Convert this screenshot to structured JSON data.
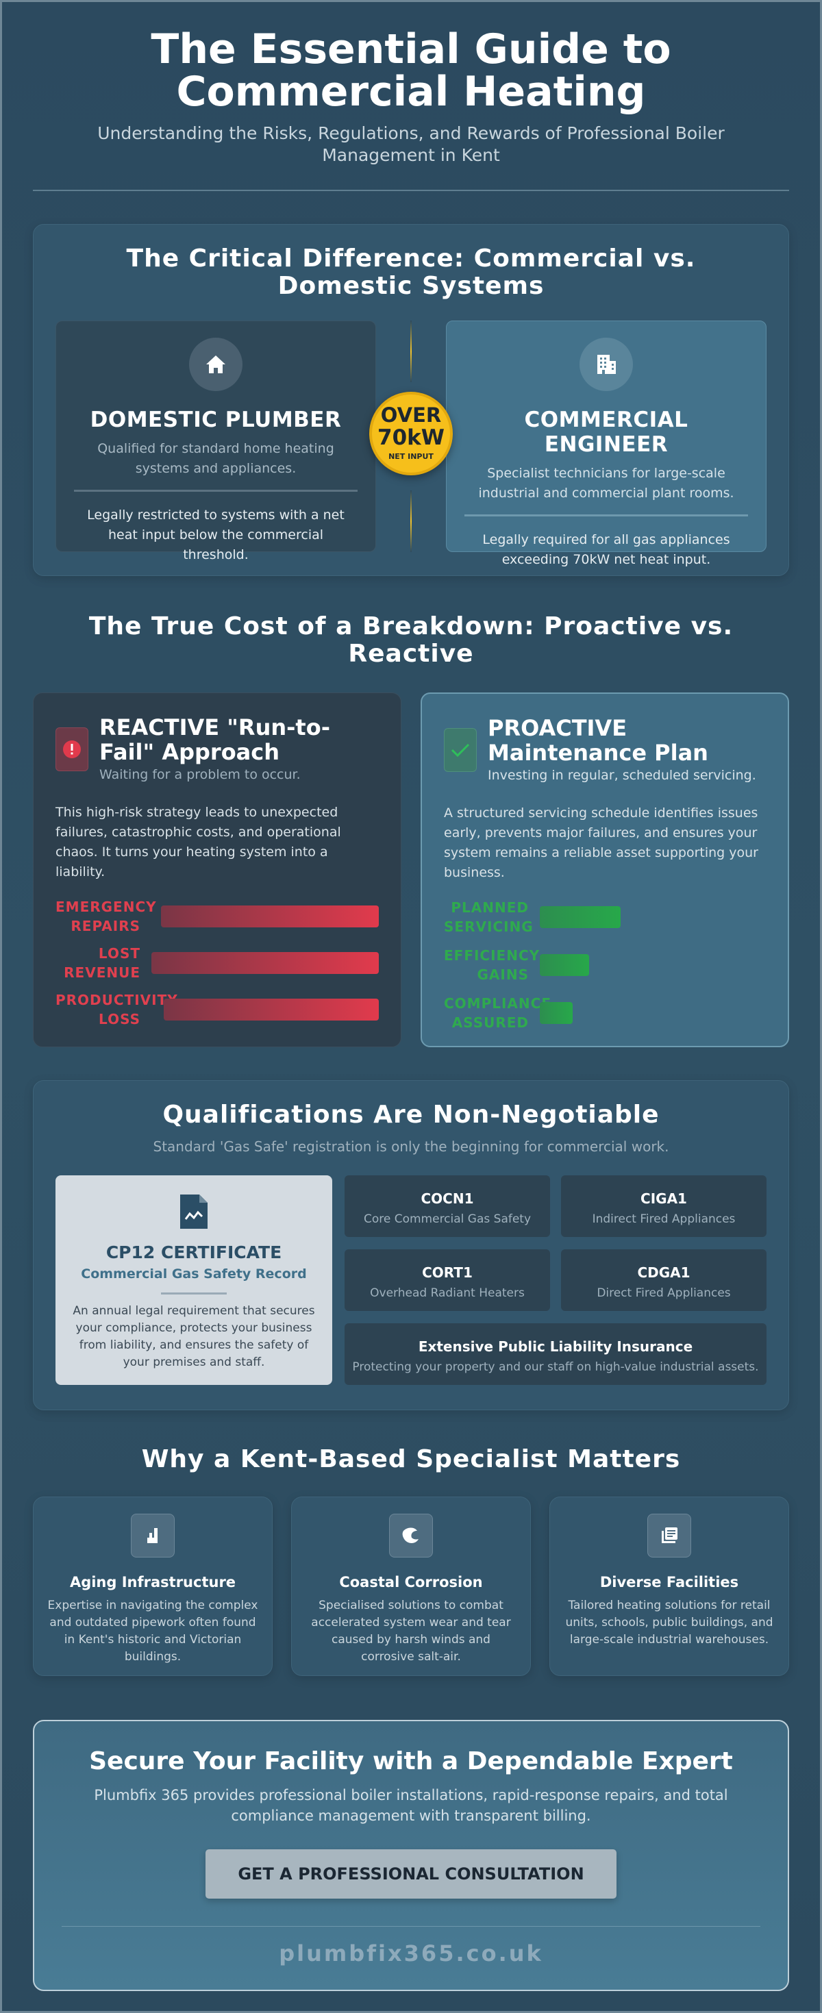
{
  "header": {
    "title": "The Essential Guide to Commercial Heating",
    "subtitle": "Understanding the Risks, Regulations, and Rewards of Professional Boiler Management in Kent"
  },
  "comparison": {
    "title": "The Critical Difference: Commercial vs. Domestic Systems",
    "domestic": {
      "heading": "DOMESTIC PLUMBER",
      "description": "Qualified for standard home heating systems and appliances.",
      "note": "Legally restricted to systems with a net heat input below the commercial threshold."
    },
    "badge": {
      "line1": "OVER",
      "line2": "70kW",
      "line3": "NET INPUT"
    },
    "commercial": {
      "heading": "COMMERCIAL ENGINEER",
      "description": "Specialist technicians for large-scale industrial and commercial plant rooms.",
      "note": "Legally required for all gas appliances exceeding 70kW net heat input."
    }
  },
  "cost": {
    "title": "The True Cost of a Breakdown: Proactive vs. Reactive",
    "reactive": {
      "heading": "REACTIVE \"Run-to-Fail\" Approach",
      "subheading": "Waiting for a problem to occur.",
      "body": "This high-risk strategy leads to unexpected failures, catastrophic costs, and operational chaos. It turns your heating system into a liability.",
      "bars": [
        "EMERGENCY REPAIRS",
        "LOST REVENUE",
        "PRODUCTIVITY LOSS"
      ]
    },
    "proactive": {
      "heading": "PROACTIVE Maintenance Plan",
      "subheading": "Investing in regular, scheduled servicing.",
      "body": "A structured servicing schedule identifies issues early, prevents major failures, and ensures your system remains a reliable asset supporting your business.",
      "bars": [
        "PLANNED SERVICING",
        "EFFICIENCY GAINS",
        "COMPLIANCE ASSURED"
      ]
    }
  },
  "qualifications": {
    "title": "Qualifications Are Non-Negotiable",
    "subtitle": "Standard 'Gas Safe' registration is only the beginning for commercial work.",
    "certificate": {
      "heading": "CP12 CERTIFICATE",
      "subheading": "Commercial Gas Safety Record",
      "body": "An annual legal requirement that secures your compliance, protects your business from liability, and ensures the safety of your premises and staff."
    },
    "items": [
      {
        "code": "COCN1",
        "description": "Core Commercial Gas Safety"
      },
      {
        "code": "CIGA1",
        "description": "Indirect Fired Appliances"
      },
      {
        "code": "CORT1",
        "description": "Overhead Radiant Heaters"
      },
      {
        "code": "CDGA1",
        "description": "Direct Fired Appliances"
      }
    ],
    "insurance": {
      "heading": "Extensive Public Liability Insurance",
      "description": "Protecting your property and our staff on high-value industrial assets."
    }
  },
  "local": {
    "title": "Why a Kent-Based Specialist Matters",
    "cards": [
      {
        "title": "Aging Infrastructure",
        "body": "Expertise in navigating the complex and outdated pipework often found in Kent's historic and Victorian buildings."
      },
      {
        "title": "Coastal Corrosion",
        "body": "Specialised solutions to combat accelerated system wear and tear caused by harsh winds and corrosive salt-air."
      },
      {
        "title": "Diverse Facilities",
        "body": "Tailored heating solutions for retail units, schools, public buildings, and large-scale industrial warehouses."
      }
    ]
  },
  "cta": {
    "title": "Secure Your Facility with a Dependable Expert",
    "body": "Plumbfix 365 provides professional boiler installations, rapid-response repairs, and total compliance management with transparent billing.",
    "button": "GET A PROFESSIONAL CONSULTATION",
    "website": "plumbfix365.co.uk"
  }
}
